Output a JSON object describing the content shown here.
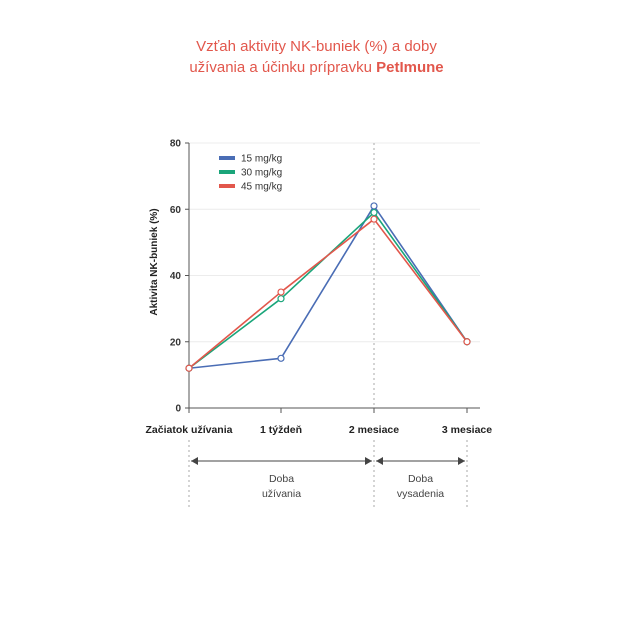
{
  "header": {
    "title_line1": "Vzťah aktivity NK-buniek (%) a doby",
    "title_line2_prefix": "užívania a účinku prípravku ",
    "title_brand": "PetImune"
  },
  "colors": {
    "title": "#e2574c",
    "series_15": "#4a6db5",
    "series_30": "#1aa57a",
    "series_45": "#e2574c",
    "axis": "#555555",
    "grid": "#ececec"
  },
  "chart_data": {
    "type": "line",
    "ylabel": "Aktivita NK-buniek (%)",
    "xlabel": "",
    "ylim": [
      0,
      80
    ],
    "yticks": [
      0,
      20,
      40,
      60,
      80
    ],
    "categories": [
      "Začiatok užívania",
      "1 týždeň",
      "2 mesiace",
      "3 mesiace"
    ],
    "grid": true,
    "legend_position": "top-left",
    "series": [
      {
        "name": "15 mg/kg",
        "color": "#4a6db5",
        "values": [
          12,
          15,
          61,
          20
        ]
      },
      {
        "name": "30 mg/kg",
        "color": "#1aa57a",
        "values": [
          12,
          33,
          59,
          20
        ]
      },
      {
        "name": "45 mg/kg",
        "color": "#e2574c",
        "values": [
          12,
          35,
          57,
          20
        ]
      }
    ],
    "phases": [
      {
        "line1": "Doba",
        "line2": "užívania",
        "from": 0,
        "to": 2
      },
      {
        "line1": "Doba",
        "line2": "vysadenia",
        "from": 2,
        "to": 3
      }
    ],
    "divider_after": 2
  }
}
